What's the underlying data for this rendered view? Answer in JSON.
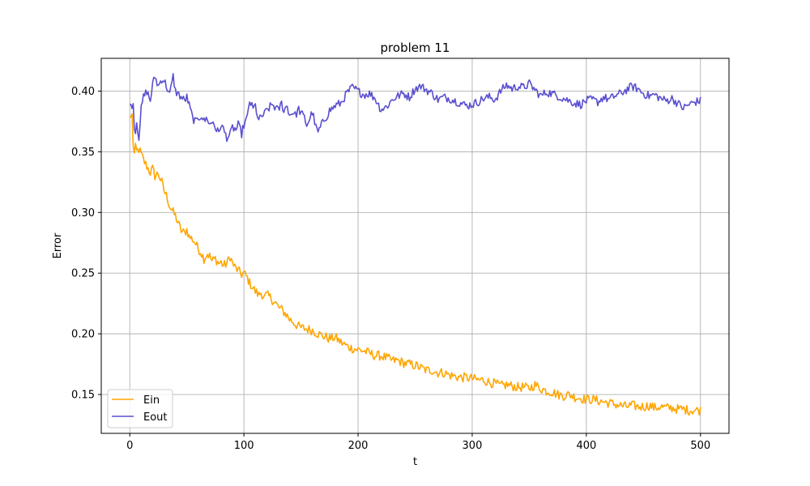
{
  "chart_data": {
    "type": "line",
    "title": "problem 11",
    "xlabel": "t",
    "ylabel": "Error",
    "xlim": [
      -25,
      525
    ],
    "ylim": [
      0.118,
      0.427
    ],
    "xticks": [
      0,
      100,
      200,
      300,
      400,
      500
    ],
    "yticks": [
      0.15,
      0.2,
      0.25,
      0.3,
      0.35,
      0.4
    ],
    "xtick_labels": [
      "0",
      "100",
      "200",
      "300",
      "400",
      "500"
    ],
    "ytick_labels": [
      "0.15",
      "0.20",
      "0.25",
      "0.30",
      "0.35",
      "0.40"
    ],
    "grid": true,
    "legend_position": "lower-left",
    "series": [
      {
        "name": "Ein",
        "color": "#ffa500",
        "x": [
          0,
          2,
          3,
          4,
          5,
          6,
          8,
          10,
          12,
          15,
          18,
          20,
          22,
          25,
          28,
          30,
          33,
          35,
          38,
          40,
          42,
          45,
          48,
          50,
          52,
          55,
          58,
          60,
          62,
          65,
          68,
          70,
          72,
          75,
          78,
          80,
          82,
          85,
          88,
          90,
          92,
          95,
          98,
          100,
          103,
          105,
          108,
          110,
          113,
          115,
          118,
          120,
          123,
          125,
          128,
          130,
          133,
          135,
          138,
          140,
          143,
          145,
          148,
          150,
          155,
          160,
          165,
          170,
          175,
          180,
          185,
          190,
          195,
          200,
          205,
          210,
          215,
          220,
          225,
          230,
          235,
          240,
          245,
          250,
          255,
          260,
          265,
          270,
          275,
          280,
          285,
          290,
          295,
          300,
          305,
          310,
          315,
          320,
          325,
          330,
          335,
          340,
          345,
          350,
          355,
          360,
          365,
          370,
          375,
          380,
          385,
          390,
          395,
          400,
          405,
          410,
          415,
          420,
          425,
          430,
          435,
          440,
          445,
          450,
          455,
          460,
          465,
          470,
          475,
          480,
          485,
          490,
          495,
          500
        ],
        "y": [
          0.378,
          0.38,
          0.356,
          0.348,
          0.353,
          0.35,
          0.352,
          0.348,
          0.343,
          0.338,
          0.333,
          0.336,
          0.33,
          0.332,
          0.325,
          0.318,
          0.312,
          0.305,
          0.3,
          0.297,
          0.292,
          0.285,
          0.283,
          0.286,
          0.28,
          0.278,
          0.274,
          0.27,
          0.268,
          0.262,
          0.266,
          0.264,
          0.26,
          0.262,
          0.258,
          0.259,
          0.256,
          0.258,
          0.264,
          0.258,
          0.255,
          0.252,
          0.249,
          0.25,
          0.246,
          0.242,
          0.238,
          0.235,
          0.232,
          0.234,
          0.23,
          0.232,
          0.23,
          0.228,
          0.225,
          0.222,
          0.22,
          0.218,
          0.215,
          0.212,
          0.21,
          0.208,
          0.206,
          0.205,
          0.204,
          0.203,
          0.2,
          0.198,
          0.196,
          0.197,
          0.193,
          0.19,
          0.188,
          0.187,
          0.186,
          0.184,
          0.182,
          0.182,
          0.18,
          0.178,
          0.178,
          0.176,
          0.175,
          0.174,
          0.172,
          0.17,
          0.17,
          0.168,
          0.168,
          0.166,
          0.165,
          0.164,
          0.164,
          0.163,
          0.162,
          0.162,
          0.16,
          0.159,
          0.157,
          0.158,
          0.157,
          0.156,
          0.156,
          0.155,
          0.158,
          0.155,
          0.153,
          0.152,
          0.15,
          0.149,
          0.15,
          0.148,
          0.147,
          0.146,
          0.146,
          0.145,
          0.144,
          0.143,
          0.142,
          0.141,
          0.14,
          0.141,
          0.14,
          0.14,
          0.141,
          0.139,
          0.14,
          0.139,
          0.139,
          0.138,
          0.138,
          0.137,
          0.137,
          0.137
        ],
        "noise": 0.004
      },
      {
        "name": "Eout",
        "color": "#5a4fcf",
        "x": [
          0,
          2,
          3,
          4,
          5,
          6,
          8,
          10,
          12,
          15,
          18,
          20,
          22,
          25,
          28,
          30,
          33,
          35,
          38,
          40,
          42,
          45,
          48,
          50,
          53,
          55,
          58,
          60,
          63,
          65,
          68,
          70,
          73,
          75,
          78,
          80,
          83,
          85,
          88,
          90,
          93,
          95,
          98,
          100,
          103,
          105,
          108,
          110,
          113,
          115,
          118,
          120,
          123,
          125,
          128,
          130,
          133,
          135,
          138,
          140,
          143,
          145,
          148,
          150,
          153,
          155,
          158,
          160,
          163,
          165,
          168,
          170,
          173,
          175,
          178,
          180,
          185,
          190,
          195,
          200,
          205,
          210,
          215,
          220,
          225,
          230,
          235,
          240,
          245,
          250,
          255,
          260,
          265,
          270,
          275,
          280,
          285,
          290,
          295,
          300,
          305,
          310,
          315,
          320,
          325,
          330,
          335,
          340,
          345,
          350,
          355,
          360,
          365,
          370,
          375,
          380,
          385,
          390,
          395,
          400,
          405,
          410,
          415,
          420,
          425,
          430,
          435,
          440,
          445,
          450,
          455,
          460,
          465,
          470,
          475,
          480,
          485,
          490,
          495,
          500
        ],
        "y": [
          0.389,
          0.389,
          0.389,
          0.372,
          0.366,
          0.375,
          0.362,
          0.385,
          0.395,
          0.4,
          0.392,
          0.405,
          0.412,
          0.404,
          0.41,
          0.409,
          0.402,
          0.397,
          0.412,
          0.4,
          0.398,
          0.395,
          0.392,
          0.395,
          0.385,
          0.378,
          0.374,
          0.378,
          0.38,
          0.375,
          0.378,
          0.372,
          0.375,
          0.37,
          0.365,
          0.373,
          0.366,
          0.362,
          0.364,
          0.37,
          0.368,
          0.372,
          0.365,
          0.372,
          0.378,
          0.392,
          0.385,
          0.388,
          0.375,
          0.379,
          0.381,
          0.384,
          0.387,
          0.389,
          0.386,
          0.384,
          0.39,
          0.384,
          0.388,
          0.38,
          0.383,
          0.38,
          0.385,
          0.382,
          0.378,
          0.372,
          0.378,
          0.383,
          0.37,
          0.366,
          0.372,
          0.376,
          0.38,
          0.384,
          0.386,
          0.388,
          0.39,
          0.398,
          0.403,
          0.4,
          0.397,
          0.398,
          0.394,
          0.385,
          0.387,
          0.393,
          0.396,
          0.398,
          0.395,
          0.402,
          0.404,
          0.401,
          0.398,
          0.393,
          0.395,
          0.394,
          0.392,
          0.39,
          0.388,
          0.389,
          0.391,
          0.394,
          0.395,
          0.393,
          0.4,
          0.405,
          0.402,
          0.404,
          0.403,
          0.406,
          0.401,
          0.396,
          0.399,
          0.398,
          0.396,
          0.394,
          0.392,
          0.39,
          0.389,
          0.392,
          0.393,
          0.391,
          0.395,
          0.393,
          0.396,
          0.398,
          0.401,
          0.404,
          0.402,
          0.398,
          0.396,
          0.397,
          0.394,
          0.392,
          0.394,
          0.39,
          0.386,
          0.389,
          0.391,
          0.392
        ],
        "noise": 0.0035
      }
    ]
  }
}
